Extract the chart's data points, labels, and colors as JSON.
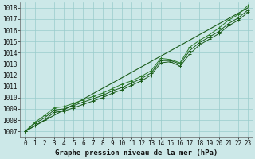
{
  "xlabel": "Graphe pression niveau de la mer (hPa)",
  "ylim": [
    1006.5,
    1018.5
  ],
  "xlim": [
    -0.5,
    23.5
  ],
  "yticks": [
    1007,
    1008,
    1009,
    1010,
    1011,
    1012,
    1013,
    1014,
    1015,
    1016,
    1017,
    1018
  ],
  "xticks": [
    0,
    1,
    2,
    3,
    4,
    5,
    6,
    7,
    8,
    9,
    10,
    11,
    12,
    13,
    14,
    15,
    16,
    17,
    18,
    19,
    20,
    21,
    22,
    23
  ],
  "bg_color": "#cce8e8",
  "grid_color": "#99cccc",
  "line_color_dark": "#1a5c1a",
  "line_color_mid": "#2a7a2a",
  "trend_line": [
    1007.0,
    1007.48,
    1007.96,
    1008.43,
    1008.91,
    1009.39,
    1009.87,
    1010.35,
    1010.83,
    1011.3,
    1011.78,
    1012.26,
    1012.74,
    1013.22,
    1013.7,
    1014.17,
    1014.65,
    1015.13,
    1015.61,
    1016.09,
    1016.57,
    1017.04,
    1017.52,
    1018.0
  ],
  "series1": [
    1007.0,
    1007.7,
    1008.2,
    1008.9,
    1009.0,
    1009.3,
    1009.6,
    1009.9,
    1010.2,
    1010.6,
    1010.9,
    1011.3,
    1011.7,
    1012.2,
    1013.3,
    1013.3,
    1013.0,
    1014.2,
    1014.9,
    1015.4,
    1015.9,
    1016.6,
    1017.1,
    1017.8
  ],
  "series2": [
    1007.0,
    1007.8,
    1008.4,
    1009.1,
    1009.2,
    1009.5,
    1009.8,
    1010.1,
    1010.4,
    1010.8,
    1011.2,
    1011.5,
    1011.9,
    1012.4,
    1013.5,
    1013.4,
    1013.1,
    1014.5,
    1015.1,
    1015.6,
    1016.2,
    1016.9,
    1017.4,
    1018.2
  ],
  "series3": [
    1007.0,
    1007.5,
    1008.0,
    1008.7,
    1008.8,
    1009.1,
    1009.4,
    1009.7,
    1010.0,
    1010.4,
    1010.7,
    1011.1,
    1011.5,
    1012.0,
    1013.1,
    1013.2,
    1012.8,
    1013.9,
    1014.7,
    1015.2,
    1015.7,
    1016.4,
    1016.9,
    1017.6
  ],
  "marker": "+",
  "markersize": 3,
  "linewidth": 0.7,
  "trend_linewidth": 0.8,
  "tick_fontsize": 5.5,
  "label_fontsize": 6.5,
  "label_fontweight": "bold"
}
